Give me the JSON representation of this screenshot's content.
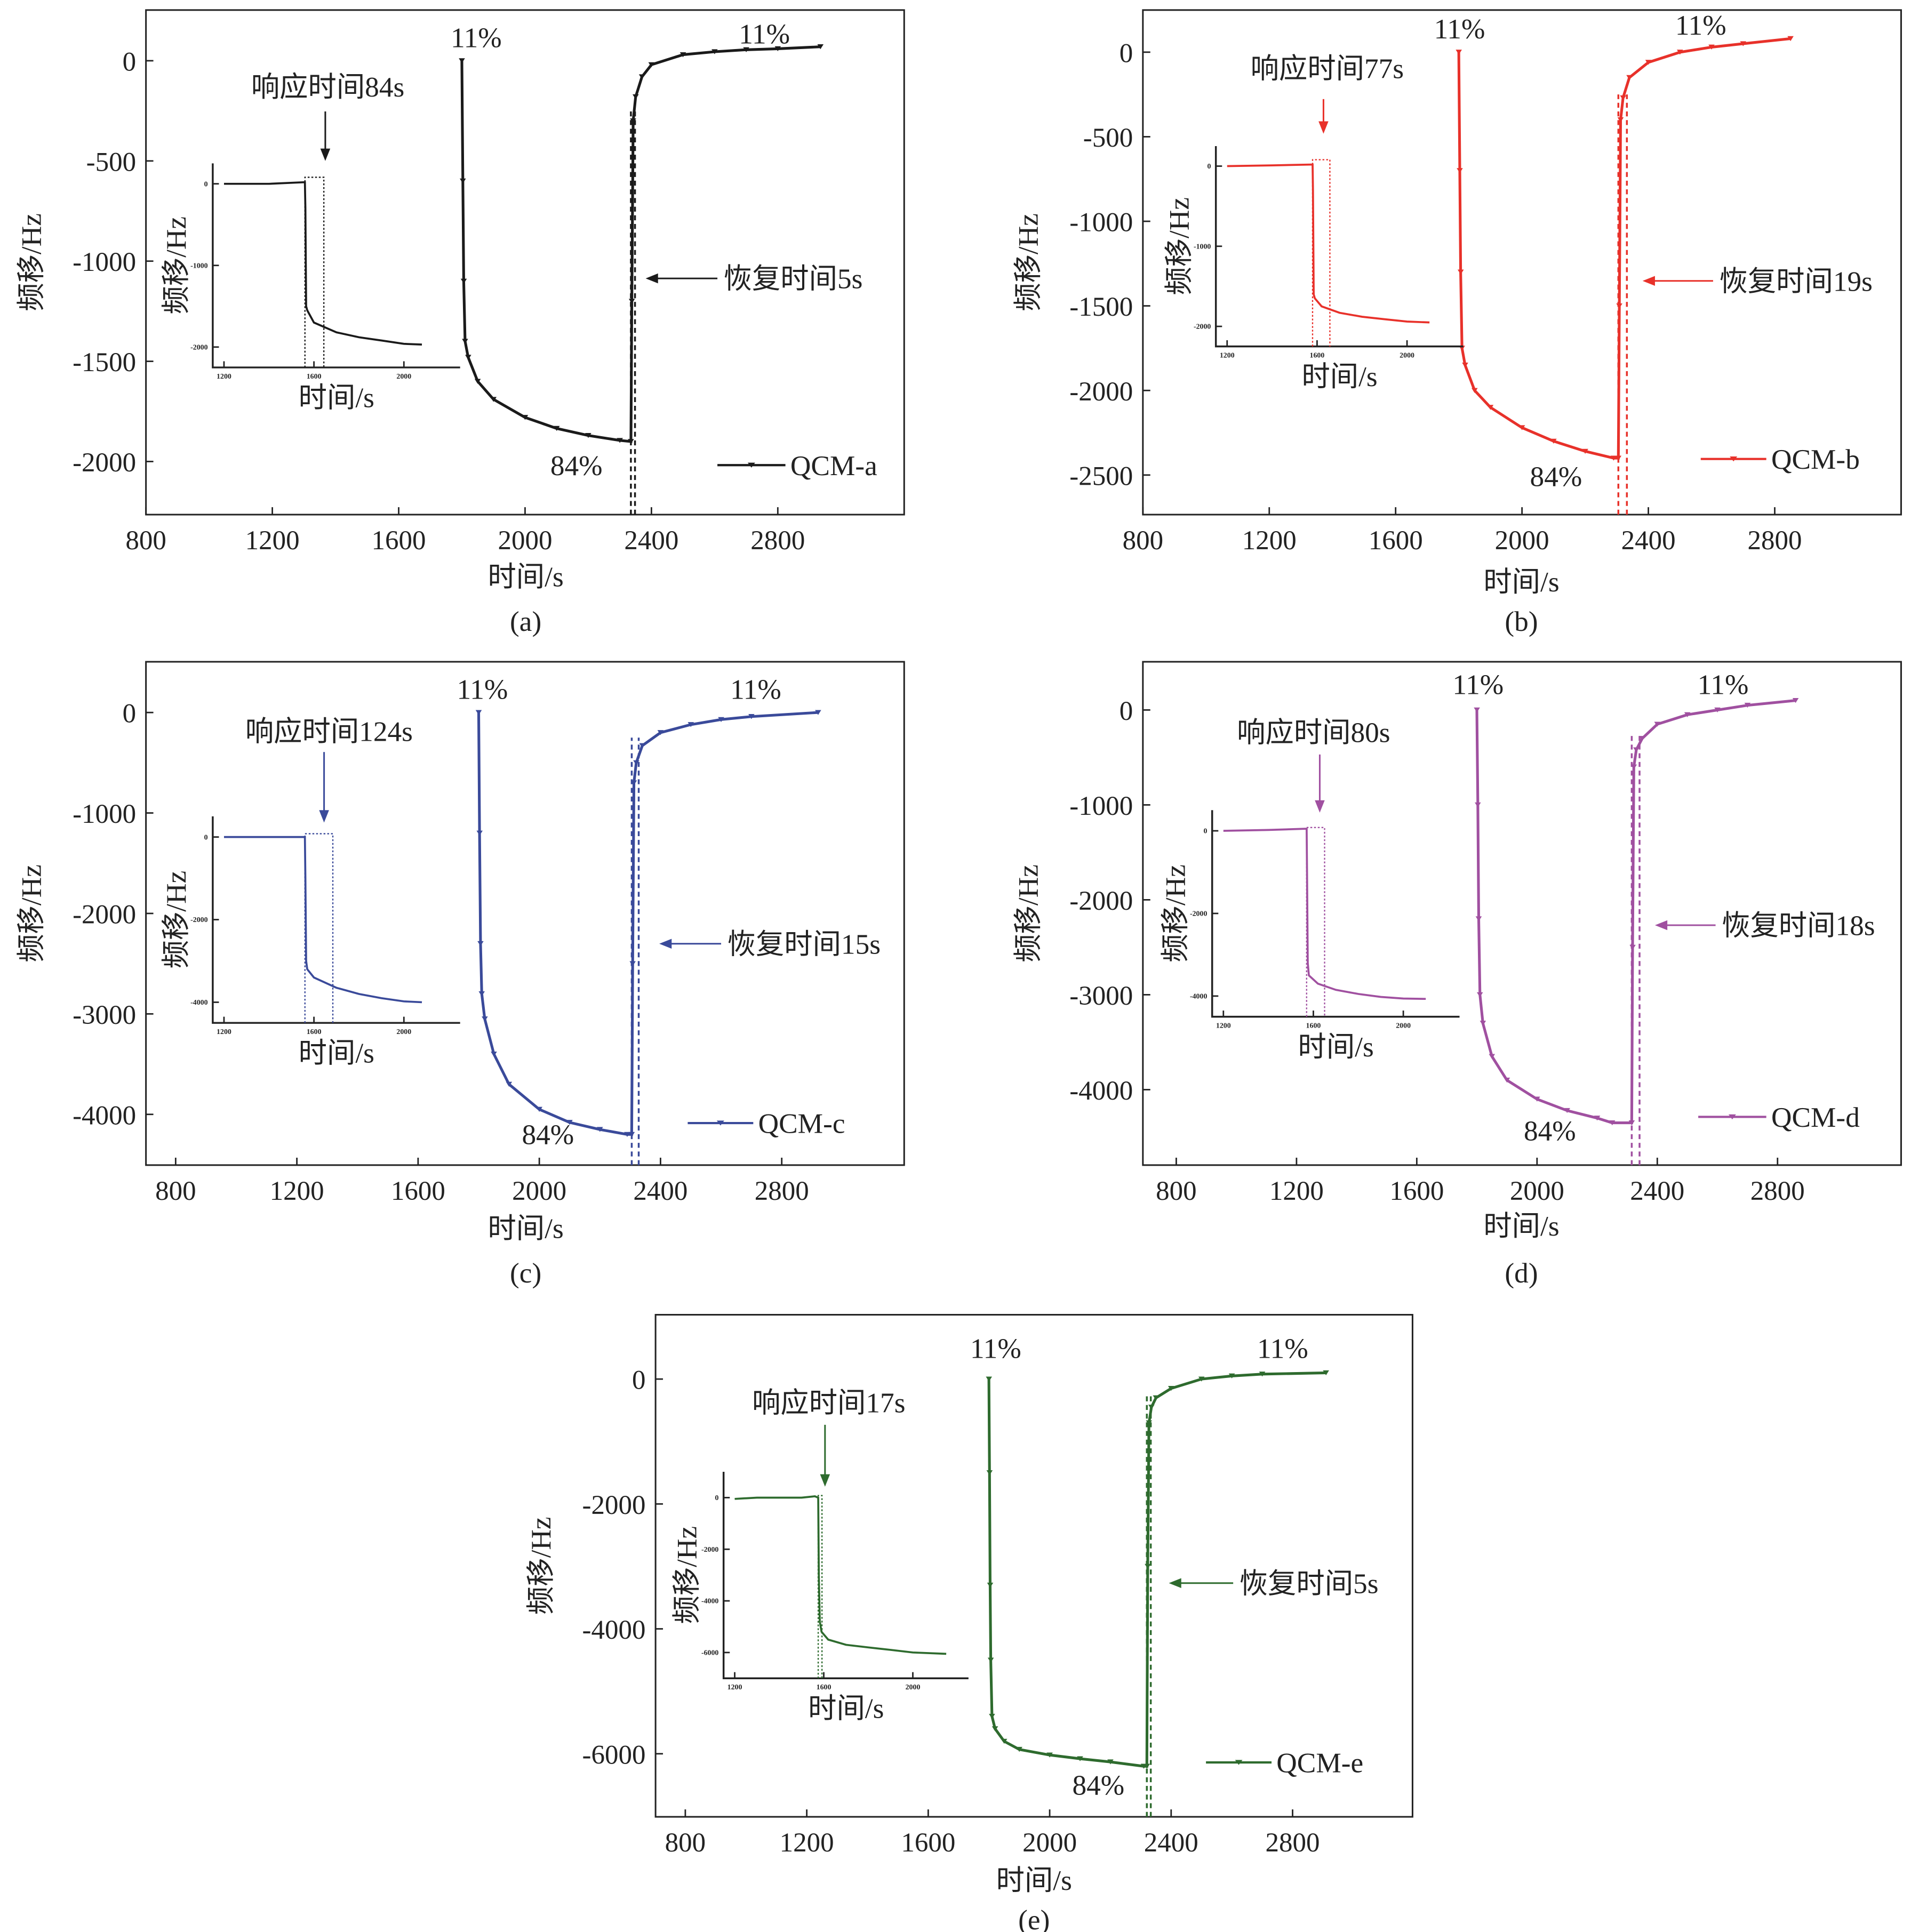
{
  "chart_data": [
    {
      "type": "line",
      "caption": "(a)",
      "xlabel": "时间/s",
      "ylabel": "频移/Hz",
      "xlim": [
        800,
        3200
      ],
      "ylim": [
        -2265,
        253
      ],
      "xticks": [
        800,
        1200,
        1600,
        2000,
        2400,
        2800
      ],
      "yticks": [
        0,
        -500,
        -1000,
        -1500,
        -2000
      ],
      "color": "#1a1a1a",
      "legend": "QCM-a",
      "legend_position": "bottom-right",
      "low_label": "84%",
      "high_labels": [
        "11%",
        "11%"
      ],
      "response_label": "响应时间84s",
      "response_time": 84,
      "recovery_label": "恢复时间5s",
      "recovery_time": 5,
      "series": {
        "x": [
          1800,
          1803,
          1806,
          1810,
          1820,
          1850,
          1900,
          2000,
          2100,
          2200,
          2300,
          2335,
          2338,
          2342,
          2350,
          2370,
          2400,
          2500,
          2600,
          2700,
          2800,
          2935
        ],
        "y": [
          0,
          -600,
          -1100,
          -1400,
          -1480,
          -1600,
          -1690,
          -1780,
          -1835,
          -1870,
          -1895,
          -1900,
          -1200,
          -300,
          -180,
          -80,
          -20,
          30,
          45,
          55,
          60,
          70
        ]
      },
      "inset": {
        "xlabel": "时间/s",
        "ylabel": "频移/Hz",
        "xlim": [
          1150,
          2250
        ],
        "ylim": [
          -2250,
          250
        ],
        "xticks": [
          1200,
          1600,
          2000
        ],
        "yticks": [
          0,
          -1000,
          -2000
        ],
        "x": [
          1200,
          1400,
          1560,
          1562,
          1565,
          1570,
          1600,
          1700,
          1800,
          1900,
          2000,
          2080
        ],
        "y": [
          0,
          0,
          20,
          -300,
          -1500,
          -1550,
          -1700,
          -1820,
          -1880,
          -1920,
          -1960,
          -1970
        ],
        "response_start": 1560
      }
    },
    {
      "type": "line",
      "caption": "(b)",
      "xlabel": "时间/s",
      "ylabel": "频移/Hz",
      "xlim": [
        800,
        3200
      ],
      "ylim": [
        -2734,
        249
      ],
      "xticks": [
        800,
        1200,
        1600,
        2000,
        2400,
        2800
      ],
      "yticks": [
        0,
        -500,
        -1000,
        -1500,
        -2000,
        -2500
      ],
      "color": "#e8312a",
      "legend": "QCM-b",
      "legend_position": "bottom-right",
      "low_label": "84%",
      "high_labels": [
        "11%",
        "11%"
      ],
      "response_label": "响应时间77s",
      "response_time": 77,
      "recovery_label": "恢复时间19s",
      "recovery_time": 19,
      "series": {
        "x": [
          1800,
          1803,
          1806,
          1810,
          1820,
          1850,
          1900,
          2000,
          2100,
          2200,
          2290,
          2305,
          2308,
          2312,
          2320,
          2340,
          2400,
          2500,
          2600,
          2700,
          2850
        ],
        "y": [
          0,
          -700,
          -1300,
          -1750,
          -1850,
          -2000,
          -2100,
          -2220,
          -2300,
          -2360,
          -2400,
          -2400,
          -1500,
          -400,
          -270,
          -150,
          -60,
          0,
          30,
          50,
          80
        ]
      },
      "inset": {
        "xlabel": "时间/s",
        "ylabel": "频移/Hz",
        "xlim": [
          1150,
          2250
        ],
        "ylim": [
          -2250,
          250
        ],
        "xticks": [
          1200,
          1600,
          2000
        ],
        "yticks": [
          0,
          -1000,
          -2000
        ],
        "x": [
          1200,
          1400,
          1580,
          1582,
          1585,
          1590,
          1620,
          1700,
          1800,
          1900,
          2000,
          2100
        ],
        "y": [
          0,
          10,
          20,
          -300,
          -1600,
          -1650,
          -1750,
          -1830,
          -1880,
          -1910,
          -1940,
          -1950
        ],
        "response_start": 1580
      }
    },
    {
      "type": "line",
      "caption": "(c)",
      "xlabel": "时间/s",
      "ylabel": "频移/Hz",
      "xlim": [
        702,
        3204
      ],
      "ylim": [
        -4505,
        505
      ],
      "xticks": [
        800,
        1200,
        1600,
        2000,
        2400,
        2800
      ],
      "yticks": [
        0,
        -1000,
        -2000,
        -3000,
        -4000
      ],
      "color": "#3a4a9a",
      "legend": "QCM-c",
      "legend_position": "bottom-right",
      "low_label": "84%",
      "high_labels": [
        "11%",
        "11%"
      ],
      "response_label": "响应时间124s",
      "response_time": 124,
      "recovery_label": "恢复时间15s",
      "recovery_time": 15,
      "series": {
        "x": [
          1800,
          1803,
          1806,
          1810,
          1820,
          1850,
          1900,
          2000,
          2100,
          2200,
          2290,
          2305,
          2308,
          2312,
          2320,
          2340,
          2400,
          2500,
          2600,
          2700,
          2920
        ],
        "y": [
          0,
          -1200,
          -2300,
          -2800,
          -3050,
          -3400,
          -3700,
          -3950,
          -4080,
          -4150,
          -4200,
          -4200,
          -2500,
          -700,
          -500,
          -330,
          -200,
          -120,
          -70,
          -40,
          0
        ]
      },
      "inset": {
        "xlabel": "时间/s",
        "ylabel": "频移/Hz",
        "xlim": [
          1150,
          2250
        ],
        "ylim": [
          -4500,
          500
        ],
        "xticks": [
          1200,
          1600,
          2000
        ],
        "yticks": [
          0,
          -2000,
          -4000
        ],
        "x": [
          1200,
          1400,
          1560,
          1562,
          1565,
          1570,
          1600,
          1700,
          1800,
          1900,
          2000,
          2080
        ],
        "y": [
          0,
          0,
          0,
          -1000,
          -3000,
          -3200,
          -3400,
          -3650,
          -3800,
          -3900,
          -3980,
          -4000
        ],
        "response_start": 1560
      }
    },
    {
      "type": "line",
      "caption": "(d)",
      "xlabel": "时间/s",
      "ylabel": "频移/Hz",
      "xlim": [
        689,
        3211
      ],
      "ylim": [
        -4795,
        508
      ],
      "xticks": [
        800,
        1200,
        1600,
        2000,
        2400,
        2800
      ],
      "yticks": [
        0,
        -1000,
        -2000,
        -3000,
        -4000
      ],
      "color": "#a050a0",
      "legend": "QCM-d",
      "legend_position": "bottom-right",
      "low_label": "84%",
      "high_labels": [
        "11%",
        "11%"
      ],
      "response_label": "响应时间80s",
      "response_time": 80,
      "recovery_label": "恢复时间18s",
      "recovery_time": 18,
      "series": {
        "x": [
          1800,
          1803,
          1806,
          1810,
          1820,
          1850,
          1900,
          2000,
          2100,
          2200,
          2250,
          2315,
          2318,
          2322,
          2330,
          2350,
          2400,
          2500,
          2600,
          2700,
          2860
        ],
        "y": [
          0,
          -1000,
          -2200,
          -3000,
          -3300,
          -3650,
          -3900,
          -4100,
          -4220,
          -4300,
          -4350,
          -4350,
          -2500,
          -600,
          -420,
          -300,
          -150,
          -50,
          0,
          50,
          100
        ]
      },
      "inset": {
        "xlabel": "时间/s",
        "ylabel": "频移/Hz",
        "xlim": [
          1150,
          2250
        ],
        "ylim": [
          -4500,
          500
        ],
        "xticks": [
          1200,
          1600,
          2000
        ],
        "yticks": [
          0,
          -2000,
          -4000
        ],
        "x": [
          1200,
          1400,
          1570,
          1572,
          1575,
          1580,
          1620,
          1700,
          1800,
          1900,
          2000,
          2100
        ],
        "y": [
          0,
          20,
          50,
          -1000,
          -3200,
          -3500,
          -3700,
          -3850,
          -3950,
          -4020,
          -4060,
          -4070
        ],
        "response_start": 1570
      }
    },
    {
      "type": "line",
      "caption": "(e)",
      "xlabel": "时间/s",
      "ylabel": "频移/Hz",
      "xlim": [
        702,
        3195
      ],
      "ylim": [
        -7010,
        1030
      ],
      "xticks": [
        800,
        1200,
        1600,
        2000,
        2400,
        2800
      ],
      "yticks": [
        0,
        -2000,
        -4000,
        -6000
      ],
      "color": "#2e6b2e",
      "legend": "QCM-e",
      "legend_position": "bottom-right",
      "low_label": "84%",
      "high_labels": [
        "11%",
        "11%"
      ],
      "response_label": "响应时间17s",
      "response_time": 17,
      "recovery_label": "恢复时间5s",
      "recovery_time": 5,
      "series": {
        "x": [
          1800,
          1802,
          1804,
          1806,
          1810,
          1820,
          1850,
          1900,
          2000,
          2100,
          2200,
          2310,
          2320,
          2323,
          2327,
          2335,
          2350,
          2400,
          2500,
          2600,
          2700,
          2910
        ],
        "y": [
          0,
          -1500,
          -3300,
          -4500,
          -5400,
          -5600,
          -5800,
          -5930,
          -6020,
          -6080,
          -6130,
          -6200,
          -6200,
          -3000,
          -700,
          -450,
          -300,
          -150,
          0,
          50,
          80,
          100
        ]
      },
      "inset": {
        "xlabel": "时间/s",
        "ylabel": "频移/Hz",
        "xlim": [
          1150,
          2250
        ],
        "ylim": [
          -7000,
          1000
        ],
        "xticks": [
          1200,
          1600,
          2000
        ],
        "yticks": [
          0,
          -2000,
          -4000,
          -6000
        ],
        "x": [
          1200,
          1300,
          1500,
          1560,
          1575,
          1578,
          1582,
          1590,
          1620,
          1700,
          1800,
          1900,
          2000,
          2150
        ],
        "y": [
          -50,
          0,
          0,
          50,
          0,
          -3000,
          -4800,
          -5200,
          -5500,
          -5700,
          -5800,
          -5900,
          -6000,
          -6050
        ],
        "response_start": 1575
      }
    }
  ]
}
